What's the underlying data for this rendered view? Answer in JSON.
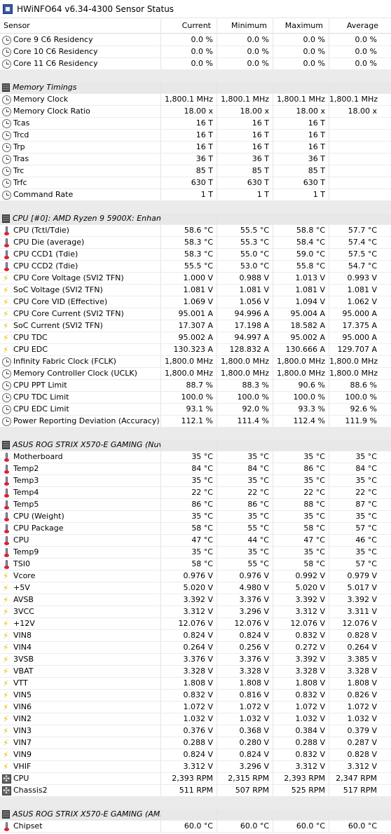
{
  "window": {
    "title": "HWiNFO64 v6.34-4300 Sensor Status"
  },
  "columns": [
    "Sensor",
    "Current",
    "Minimum",
    "Maximum",
    "Average"
  ],
  "rows": [
    {
      "kind": "sensor",
      "icon": "clock",
      "label": "Core 9 C6 Residency",
      "cur": "0.0 %",
      "min": "0.0 %",
      "max": "0.0 %",
      "avg": "0.0 %"
    },
    {
      "kind": "sensor",
      "icon": "clock",
      "label": "Core 10 C6 Residency",
      "cur": "0.0 %",
      "min": "0.0 %",
      "max": "0.0 %",
      "avg": "0.0 %"
    },
    {
      "kind": "sensor",
      "icon": "clock",
      "label": "Core 11 C6 Residency",
      "cur": "0.0 %",
      "min": "0.0 %",
      "max": "0.0 %",
      "avg": "0.0 %"
    },
    {
      "kind": "spacer"
    },
    {
      "kind": "group",
      "label": "Memory Timings"
    },
    {
      "kind": "sensor",
      "icon": "clock",
      "label": "Memory Clock",
      "cur": "1,800.1 MHz",
      "min": "1,800.1 MHz",
      "max": "1,800.1 MHz",
      "avg": "1,800.1 MHz"
    },
    {
      "kind": "sensor",
      "icon": "clock",
      "label": "Memory Clock Ratio",
      "cur": "18.00 x",
      "min": "18.00 x",
      "max": "18.00 x",
      "avg": "18.00 x"
    },
    {
      "kind": "sensor",
      "icon": "clock",
      "label": "Tcas",
      "cur": "16 T",
      "min": "16 T",
      "max": "16 T",
      "avg": ""
    },
    {
      "kind": "sensor",
      "icon": "clock",
      "label": "Trcd",
      "cur": "16 T",
      "min": "16 T",
      "max": "16 T",
      "avg": ""
    },
    {
      "kind": "sensor",
      "icon": "clock",
      "label": "Trp",
      "cur": "16 T",
      "min": "16 T",
      "max": "16 T",
      "avg": ""
    },
    {
      "kind": "sensor",
      "icon": "clock",
      "label": "Tras",
      "cur": "36 T",
      "min": "36 T",
      "max": "36 T",
      "avg": ""
    },
    {
      "kind": "sensor",
      "icon": "clock",
      "label": "Trc",
      "cur": "85 T",
      "min": "85 T",
      "max": "85 T",
      "avg": ""
    },
    {
      "kind": "sensor",
      "icon": "clock",
      "label": "Trfc",
      "cur": "630 T",
      "min": "630 T",
      "max": "630 T",
      "avg": ""
    },
    {
      "kind": "sensor",
      "icon": "clock",
      "label": "Command Rate",
      "cur": "1 T",
      "min": "1 T",
      "max": "1 T",
      "avg": ""
    },
    {
      "kind": "spacer"
    },
    {
      "kind": "group",
      "label": "CPU [#0]: AMD Ryzen 9 5900X: Enhanced"
    },
    {
      "kind": "sensor",
      "icon": "thermo",
      "label": "CPU (Tctl/Tdie)",
      "cur": "58.6 °C",
      "min": "55.5 °C",
      "max": "58.8 °C",
      "avg": "57.7 °C"
    },
    {
      "kind": "sensor",
      "icon": "thermo",
      "label": "CPU Die (average)",
      "cur": "58.3 °C",
      "min": "55.3 °C",
      "max": "58.4 °C",
      "avg": "57.4 °C"
    },
    {
      "kind": "sensor",
      "icon": "thermo",
      "label": "CPU CCD1 (Tdie)",
      "cur": "58.3 °C",
      "min": "55.0 °C",
      "max": "59.0 °C",
      "avg": "57.5 °C"
    },
    {
      "kind": "sensor",
      "icon": "thermo",
      "label": "CPU CCD2 (Tdie)",
      "cur": "55.5 °C",
      "min": "53.0 °C",
      "max": "55.8 °C",
      "avg": "54.7 °C"
    },
    {
      "kind": "sensor",
      "icon": "volt",
      "label": "CPU Core Voltage (SVI2 TFN)",
      "cur": "1.000 V",
      "min": "0.988 V",
      "max": "1.013 V",
      "avg": "0.993 V"
    },
    {
      "kind": "sensor",
      "icon": "volt",
      "label": "SoC Voltage (SVI2 TFN)",
      "cur": "1.081 V",
      "min": "1.081 V",
      "max": "1.081 V",
      "avg": "1.081 V"
    },
    {
      "kind": "sensor",
      "icon": "volt",
      "label": "CPU Core VID (Effective)",
      "cur": "1.069 V",
      "min": "1.056 V",
      "max": "1.094 V",
      "avg": "1.062 V"
    },
    {
      "kind": "sensor",
      "icon": "volt",
      "label": "CPU Core Current (SVI2 TFN)",
      "cur": "95.001 A",
      "min": "94.996 A",
      "max": "95.004 A",
      "avg": "95.000 A"
    },
    {
      "kind": "sensor",
      "icon": "volt",
      "label": "SoC Current (SVI2 TFN)",
      "cur": "17.307 A",
      "min": "17.198 A",
      "max": "18.582 A",
      "avg": "17.375 A"
    },
    {
      "kind": "sensor",
      "icon": "volt",
      "label": "CPU TDC",
      "cur": "95.002 A",
      "min": "94.997 A",
      "max": "95.002 A",
      "avg": "95.000 A"
    },
    {
      "kind": "sensor",
      "icon": "volt",
      "label": "CPU EDC",
      "cur": "130.323 A",
      "min": "128.832 A",
      "max": "130.666 A",
      "avg": "129.707 A"
    },
    {
      "kind": "sensor",
      "icon": "clock",
      "label": "Infinity Fabric Clock (FCLK)",
      "cur": "1,800.0 MHz",
      "min": "1,800.0 MHz",
      "max": "1,800.0 MHz",
      "avg": "1,800.0 MHz"
    },
    {
      "kind": "sensor",
      "icon": "clock",
      "label": "Memory Controller Clock (UCLK)",
      "cur": "1,800.0 MHz",
      "min": "1,800.0 MHz",
      "max": "1,800.0 MHz",
      "avg": "1,800.0 MHz"
    },
    {
      "kind": "sensor",
      "icon": "clock",
      "label": "CPU PPT Limit",
      "cur": "88.7 %",
      "min": "88.3 %",
      "max": "90.6 %",
      "avg": "88.6 %"
    },
    {
      "kind": "sensor",
      "icon": "clock",
      "label": "CPU TDC Limit",
      "cur": "100.0 %",
      "min": "100.0 %",
      "max": "100.0 %",
      "avg": "100.0 %"
    },
    {
      "kind": "sensor",
      "icon": "clock",
      "label": "CPU EDC Limit",
      "cur": "93.1 %",
      "min": "92.0 %",
      "max": "93.3 %",
      "avg": "92.6 %"
    },
    {
      "kind": "sensor",
      "icon": "clock",
      "label": "Power Reporting Deviation (Accuracy)",
      "cur": "112.1 %",
      "min": "111.4 %",
      "max": "112.4 %",
      "avg": "111.9 %"
    },
    {
      "kind": "spacer"
    },
    {
      "kind": "group",
      "label": "ASUS ROG STRIX X570-E GAMING (Nuvo..."
    },
    {
      "kind": "sensor",
      "icon": "thermo",
      "label": "Motherboard",
      "cur": "35 °C",
      "min": "35 °C",
      "max": "35 °C",
      "avg": "35 °C"
    },
    {
      "kind": "sensor",
      "icon": "thermo",
      "label": "Temp2",
      "cur": "84 °C",
      "min": "84 °C",
      "max": "86 °C",
      "avg": "84 °C"
    },
    {
      "kind": "sensor",
      "icon": "thermo",
      "label": "Temp3",
      "cur": "35 °C",
      "min": "35 °C",
      "max": "35 °C",
      "avg": "35 °C"
    },
    {
      "kind": "sensor",
      "icon": "thermo",
      "label": "Temp4",
      "cur": "22 °C",
      "min": "22 °C",
      "max": "22 °C",
      "avg": "22 °C"
    },
    {
      "kind": "sensor",
      "icon": "thermo",
      "label": "Temp5",
      "cur": "86 °C",
      "min": "86 °C",
      "max": "88 °C",
      "avg": "87 °C"
    },
    {
      "kind": "sensor",
      "icon": "thermo",
      "label": "CPU (Weight)",
      "cur": "35 °C",
      "min": "35 °C",
      "max": "35 °C",
      "avg": "35 °C"
    },
    {
      "kind": "sensor",
      "icon": "thermo",
      "label": "CPU Package",
      "cur": "58 °C",
      "min": "55 °C",
      "max": "58 °C",
      "avg": "57 °C"
    },
    {
      "kind": "sensor",
      "icon": "thermo",
      "label": "CPU",
      "cur": "47 °C",
      "min": "44 °C",
      "max": "47 °C",
      "avg": "46 °C"
    },
    {
      "kind": "sensor",
      "icon": "thermo",
      "label": "Temp9",
      "cur": "35 °C",
      "min": "35 °C",
      "max": "35 °C",
      "avg": "35 °C"
    },
    {
      "kind": "sensor",
      "icon": "thermo",
      "label": "TSI0",
      "cur": "58 °C",
      "min": "55 °C",
      "max": "58 °C",
      "avg": "57 °C"
    },
    {
      "kind": "sensor",
      "icon": "volt",
      "label": "Vcore",
      "cur": "0.976 V",
      "min": "0.976 V",
      "max": "0.992 V",
      "avg": "0.979 V"
    },
    {
      "kind": "sensor",
      "icon": "volt",
      "label": "+5V",
      "cur": "5.020 V",
      "min": "4.980 V",
      "max": "5.020 V",
      "avg": "5.017 V"
    },
    {
      "kind": "sensor",
      "icon": "volt",
      "label": "AVSB",
      "cur": "3.392 V",
      "min": "3.376 V",
      "max": "3.392 V",
      "avg": "3.392 V"
    },
    {
      "kind": "sensor",
      "icon": "volt",
      "label": "3VCC",
      "cur": "3.312 V",
      "min": "3.296 V",
      "max": "3.312 V",
      "avg": "3.311 V"
    },
    {
      "kind": "sensor",
      "icon": "volt",
      "label": "+12V",
      "cur": "12.076 V",
      "min": "12.076 V",
      "max": "12.076 V",
      "avg": "12.076 V"
    },
    {
      "kind": "sensor",
      "icon": "volt",
      "label": "VIN8",
      "cur": "0.824 V",
      "min": "0.824 V",
      "max": "0.832 V",
      "avg": "0.828 V"
    },
    {
      "kind": "sensor",
      "icon": "volt",
      "label": "VIN4",
      "cur": "0.264 V",
      "min": "0.256 V",
      "max": "0.272 V",
      "avg": "0.264 V"
    },
    {
      "kind": "sensor",
      "icon": "volt",
      "label": "3VSB",
      "cur": "3.376 V",
      "min": "3.376 V",
      "max": "3.392 V",
      "avg": "3.385 V"
    },
    {
      "kind": "sensor",
      "icon": "volt",
      "label": "VBAT",
      "cur": "3.328 V",
      "min": "3.328 V",
      "max": "3.328 V",
      "avg": "3.328 V"
    },
    {
      "kind": "sensor",
      "icon": "volt",
      "label": "VTT",
      "cur": "1.808 V",
      "min": "1.808 V",
      "max": "1.808 V",
      "avg": "1.808 V"
    },
    {
      "kind": "sensor",
      "icon": "volt",
      "label": "VIN5",
      "cur": "0.832 V",
      "min": "0.816 V",
      "max": "0.832 V",
      "avg": "0.826 V"
    },
    {
      "kind": "sensor",
      "icon": "volt",
      "label": "VIN6",
      "cur": "1.072 V",
      "min": "1.072 V",
      "max": "1.072 V",
      "avg": "1.072 V"
    },
    {
      "kind": "sensor",
      "icon": "volt",
      "label": "VIN2",
      "cur": "1.032 V",
      "min": "1.032 V",
      "max": "1.032 V",
      "avg": "1.032 V"
    },
    {
      "kind": "sensor",
      "icon": "volt",
      "label": "VIN3",
      "cur": "0.376 V",
      "min": "0.368 V",
      "max": "0.384 V",
      "avg": "0.379 V"
    },
    {
      "kind": "sensor",
      "icon": "volt",
      "label": "VIN7",
      "cur": "0.288 V",
      "min": "0.280 V",
      "max": "0.288 V",
      "avg": "0.287 V"
    },
    {
      "kind": "sensor",
      "icon": "volt",
      "label": "VIN9",
      "cur": "0.824 V",
      "min": "0.824 V",
      "max": "0.832 V",
      "avg": "0.828 V"
    },
    {
      "kind": "sensor",
      "icon": "volt",
      "label": "VHIF",
      "cur": "3.312 V",
      "min": "3.296 V",
      "max": "3.312 V",
      "avg": "3.312 V"
    },
    {
      "kind": "sensor",
      "icon": "fan",
      "label": "CPU",
      "cur": "2,393 RPM",
      "min": "2,315 RPM",
      "max": "2,393 RPM",
      "avg": "2,347 RPM"
    },
    {
      "kind": "sensor",
      "icon": "fan",
      "label": "Chassis2",
      "cur": "511 RPM",
      "min": "507 RPM",
      "max": "525 RPM",
      "avg": "517 RPM"
    },
    {
      "kind": "spacer"
    },
    {
      "kind": "group",
      "label": "ASUS ROG STRIX X570-E GAMING (AMD ..."
    },
    {
      "kind": "sensor",
      "icon": "thermo",
      "label": "Chipset",
      "cur": "60.0 °C",
      "min": "60.0 °C",
      "max": "60.0 °C",
      "avg": "60.0 °C"
    }
  ]
}
